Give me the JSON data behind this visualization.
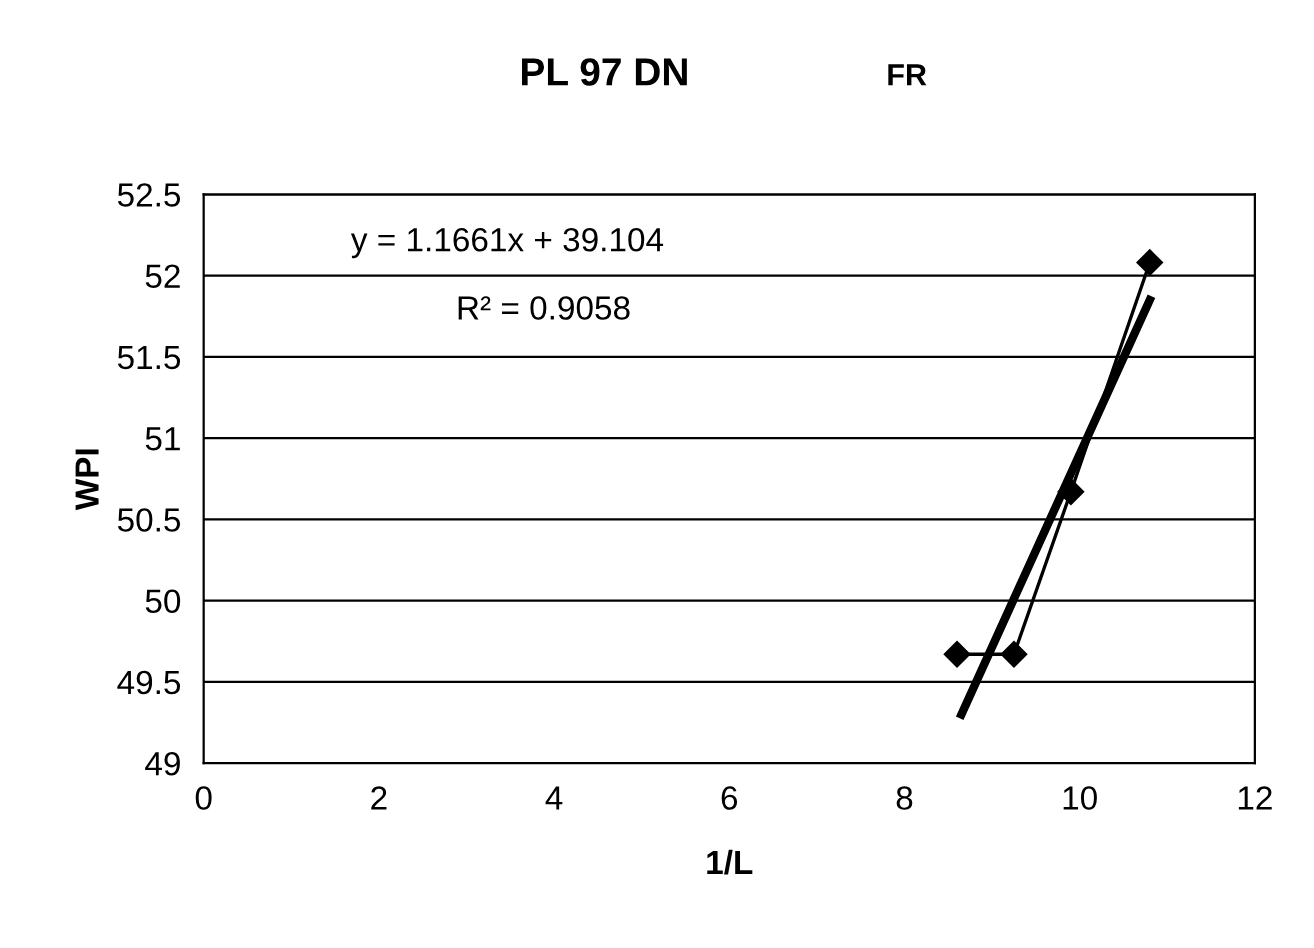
{
  "chart_data": {
    "type": "line",
    "title": "PL 97 DN",
    "xlabel": "1/L",
    "ylabel": "WPI",
    "annotations": [
      "FR",
      "y = 1.1661x + 39.104",
      "R² = 0.9058"
    ],
    "xlim": [
      0,
      12
    ],
    "xticks": [
      0,
      2,
      4,
      6,
      8,
      10,
      12
    ],
    "ylim": [
      49,
      52.5
    ],
    "yticks": [
      49,
      49.5,
      50,
      50.5,
      51,
      51.5,
      52,
      52.5
    ],
    "grid": "y",
    "legend": false,
    "series": [
      {
        "color": "#000000",
        "marker": "diamond",
        "x": [
          8.6,
          9.25,
          9.9,
          10.8
        ],
        "values": [
          49.67,
          49.67,
          50.67,
          52.08
        ]
      },
      {
        "color": "#000000",
        "marker": "none",
        "x": [
          8.65,
          10.8
        ],
        "values": [
          49.3,
          51.85
        ]
      }
    ]
  }
}
